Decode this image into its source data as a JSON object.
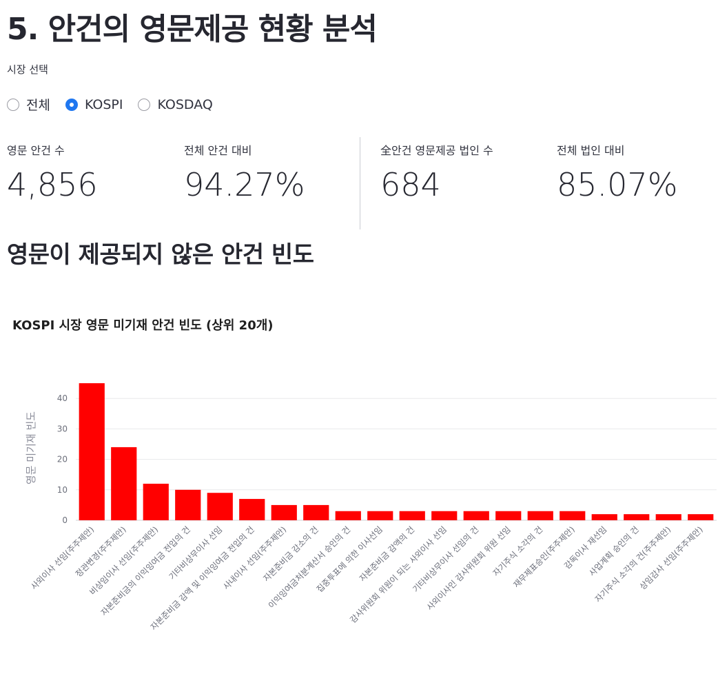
{
  "page": {
    "title": "5. 안건의 영문제공 현황 분석",
    "section_title": "영문이 제공되지 않은 안건 빈도"
  },
  "market_select": {
    "label": "시장 선택",
    "options": [
      {
        "label": "전체",
        "selected": false
      },
      {
        "label": "KOSPI",
        "selected": true
      },
      {
        "label": "KOSDAQ",
        "selected": false
      }
    ]
  },
  "metrics": [
    {
      "label": "영문 안건 수",
      "value": "4,856"
    },
    {
      "label": "전체 안건 대비",
      "value": "94.27%"
    },
    {
      "label": "全안건 영문제공 법인 수",
      "value": "684"
    },
    {
      "label": "전체 법인 대비",
      "value": "85.07%"
    }
  ],
  "chart_data": {
    "type": "bar",
    "title": "KOSPI 시장 영문 미기재 안건 빈도 (상위 20개)",
    "xlabel": "",
    "ylabel": "영문 미기재 빈도",
    "ylim": [
      0,
      47
    ],
    "yticks": [
      0,
      10,
      20,
      30,
      40
    ],
    "grid": true,
    "bar_color": "#ff0000",
    "categories": [
      "사외이사 선임(주주제안)",
      "정관변경(주주제안)",
      "비상임이사 선임(주주제안)",
      "자본준비금의 이익잉여금 전입의 건",
      "기타비상무이사 선임",
      "자본준비금 감액 및 이익잉여금 전입의 건",
      "사내이사 선임(주주제안)",
      "자본준비금 감소의 건",
      "이익잉여금처분계산서 승인의 건",
      "집중투표에 의한 이사선임",
      "자본준비금 감액의 건",
      "감사위원회 위원이 되는 사외이사 선임",
      "기타비상무이사 선임의 건",
      "사외이사인 감사위원회 위원 선임",
      "자기주식 소각의 건",
      "재무제표승인(주주제안)",
      "감독이사 재선임",
      "사업계획 승인의 건",
      "자기주식 소각의 건(주주제안)",
      "상임감사 선임(주주제안)"
    ],
    "values": [
      45,
      24,
      12,
      10,
      9,
      7,
      5,
      5,
      3,
      3,
      3,
      3,
      3,
      3,
      3,
      3,
      2,
      2,
      2,
      2
    ]
  }
}
